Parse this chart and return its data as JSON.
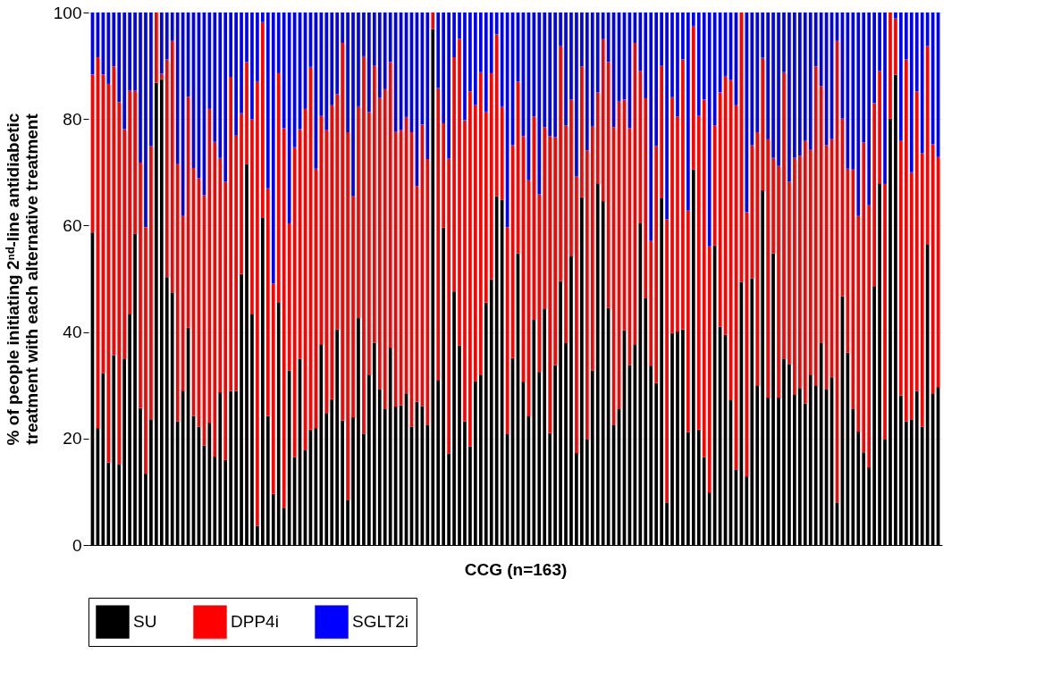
{
  "chart_data": {
    "type": "bar",
    "stacked": true,
    "xlabel": "CCG (n=163)",
    "ylabel": "% of people initiating 2ⁿᵈ-line antidiabetic\ntreatment with each alternative treatment",
    "categories": [
      null,
      null,
      null,
      null,
      null,
      null,
      null,
      null,
      null,
      null,
      null,
      null,
      null,
      null,
      null,
      null,
      null,
      null,
      null,
      null,
      null,
      null,
      null,
      null,
      null,
      null,
      null,
      null,
      null,
      null,
      null,
      null,
      null,
      null,
      null,
      null,
      null,
      null,
      null,
      null,
      null,
      null,
      null,
      null,
      null,
      null,
      null,
      null,
      null,
      null,
      null,
      null,
      null,
      null,
      null,
      null,
      null,
      null,
      null,
      null,
      null,
      null,
      null,
      null,
      null,
      null,
      null,
      null,
      null,
      null,
      null,
      null,
      null,
      null,
      null,
      null,
      null,
      null,
      null,
      null,
      null,
      null,
      null,
      null,
      null,
      null,
      null,
      null,
      null,
      null,
      null,
      null,
      null,
      null,
      null,
      null,
      null,
      null,
      null,
      null,
      null,
      null,
      null,
      null,
      null,
      null,
      null,
      null,
      null,
      null,
      null,
      null,
      null,
      null,
      null,
      null,
      null,
      null,
      null,
      null,
      null,
      null,
      null,
      null,
      null,
      null,
      null,
      null,
      null,
      null,
      null,
      null,
      null,
      null,
      null,
      null,
      null,
      null,
      null,
      null,
      null,
      null,
      null,
      null,
      null,
      null,
      null,
      null,
      null,
      null,
      null,
      null,
      null,
      null,
      null,
      null,
      null,
      null,
      null,
      null
    ],
    "series": [
      {
        "name": "SU",
        "color": "#000000",
        "values": [
          58.7,
          22.0,
          32.3,
          15.5,
          35.6,
          15.2,
          34.9,
          43.4,
          58.4,
          25.7,
          13.4,
          23.5,
          86.8,
          87.5,
          50.3,
          47.3,
          23.2,
          29.0,
          40.8,
          24.2,
          22.2,
          18.7,
          23.0,
          16.6,
          28.7,
          16.0,
          28.9,
          28.9,
          50.9,
          71.5,
          43.4,
          3.6,
          61.4,
          24.2,
          9.6,
          45.6,
          7.0,
          32.8,
          16.5,
          35.0,
          17.9,
          21.7,
          22.0,
          37.7,
          24.8,
          27.4,
          40.5,
          23.4,
          8.5,
          24.0,
          42.6,
          20.9,
          32.0,
          38.0,
          29.2,
          25.5,
          37.1,
          26.0,
          26.2,
          28.5,
          22.2,
          26.9,
          26.1,
          22.5,
          96.9,
          31.0,
          59.6,
          17.2,
          47.6,
          37.5,
          23.2,
          18.5,
          30.8,
          31.9,
          45.5,
          49.9,
          65.5,
          64.8,
          20.8,
          35.1,
          54.8,
          30.7,
          24.3,
          42.3,
          32.5,
          44.3,
          21.0,
          33.8,
          49.6,
          37.9,
          54.3,
          17.3,
          65.3,
          19.9,
          32.8,
          67.9,
          64.6,
          44.5,
          22.5,
          25.5,
          40.3,
          33.8,
          37.7,
          60.4,
          46.3,
          33.7,
          30.4,
          65.1,
          8.0,
          39.8,
          40.1,
          40.5,
          21.2,
          70.5,
          21.7,
          16.5,
          9.9,
          56.3,
          41.0,
          39.5,
          27.3,
          14.2,
          49.4,
          12.9,
          50.1,
          30.0,
          66.6,
          27.7,
          54.8,
          27.7,
          35.0,
          33.9,
          28.2,
          29.5,
          26.6,
          32.0,
          30.0,
          37.9,
          29.2,
          31.5,
          8.0,
          46.7,
          36.1,
          25.5,
          21.3,
          17.4,
          14.6,
          48.6,
          67.9,
          19.8,
          80.1,
          88.3,
          28.1,
          23.2,
          23.5,
          28.9,
          22.2,
          56.5,
          28.5,
          29.7
        ]
      },
      {
        "name": "DPP4i",
        "color": "#ff0000",
        "values": [
          29.7,
          69.6,
          56.1,
          71.1,
          54.3,
          68.0,
          43.2,
          41.9,
          26.9,
          46.1,
          46.3,
          51.4,
          13.2,
          1.0,
          40.9,
          47.5,
          48.3,
          32.8,
          43.4,
          46.6,
          46.7,
          47.0,
          58.9,
          59.1,
          44.0,
          52.2,
          59.0,
          48.1,
          30.2,
          19.2,
          36.6,
          83.5,
          36.8,
          42.8,
          39.5,
          43.0,
          71.3,
          27.6,
          58.2,
          43.1,
          64.0,
          68.1,
          48.7,
          43.0,
          53.2,
          55.3,
          44.2,
          70.9,
          69.0,
          41.6,
          39.8,
          70.9,
          49.3,
          52.1,
          54.8,
          60.1,
          53.6,
          51.7,
          51.8,
          51.9,
          55.3,
          40.5,
          52.9,
          50.0,
          3.1,
          54.8,
          19.6,
          55.4,
          44.0,
          57.6,
          56.6,
          66.7,
          51.8,
          56.9,
          35.9,
          38.7,
          30.4,
          17.6,
          38.9,
          40.0,
          32.2,
          46.1,
          44.2,
          38.2,
          33.4,
          34.2,
          55.8,
          42.8,
          44.2,
          40.9,
          29.4,
          51.9,
          24.6,
          54.2,
          45.9,
          17.1,
          30.4,
          46.2,
          56.0,
          57.9,
          43.4,
          44.5,
          56.6,
          28.6,
          37.6,
          23.5,
          44.5,
          25.0,
          53.2,
          44.3,
          40.4,
          50.7,
          41.6,
          27.0,
          58.9,
          67.2,
          46.2,
          22.5,
          44.0,
          48.6,
          60.0,
          68.5,
          50.6,
          49.6,
          25.0,
          47.5,
          24.9,
          48.5,
          17.9,
          43.6,
          53.8,
          34.3,
          44.5,
          43.6,
          49.3,
          42.2,
          59.9,
          48.3,
          45.9,
          44.7,
          86.8,
          33.4,
          34.6,
          45.0,
          40.6,
          58.2,
          49.2,
          34.4,
          21.1,
          48.0,
          19.9,
          10.6,
          47.9,
          68.0,
          46.5,
          56.3,
          51.4,
          37.2,
          46.8,
          43.3
        ]
      },
      {
        "name": "SGLT2i",
        "color": "#0000ff",
        "values": [
          11.6,
          8.4,
          11.6,
          13.4,
          10.1,
          16.8,
          21.9,
          14.7,
          14.7,
          28.2,
          40.3,
          25.1,
          0,
          11.5,
          8.8,
          5.2,
          28.5,
          38.2,
          15.8,
          29.2,
          31.1,
          34.3,
          18.1,
          24.3,
          27.3,
          31.8,
          12.1,
          23.0,
          18.9,
          9.3,
          20.0,
          12.9,
          1.8,
          33.0,
          50.9,
          11.4,
          21.7,
          39.6,
          25.3,
          21.9,
          18.1,
          10.2,
          29.3,
          19.3,
          22.0,
          17.3,
          15.3,
          5.7,
          22.5,
          34.4,
          17.6,
          8.2,
          18.7,
          9.9,
          16.0,
          14.4,
          9.3,
          22.3,
          22.0,
          19.6,
          22.5,
          32.6,
          21.0,
          27.5,
          0,
          14.2,
          20.8,
          27.4,
          8.4,
          4.9,
          20.2,
          14.8,
          17.4,
          11.2,
          18.6,
          11.4,
          4.1,
          17.6,
          40.3,
          24.9,
          13.0,
          23.2,
          31.5,
          19.5,
          34.1,
          21.5,
          23.2,
          23.4,
          6.2,
          21.2,
          16.3,
          30.8,
          10.1,
          25.9,
          21.3,
          15.0,
          5.0,
          9.3,
          21.5,
          16.6,
          16.3,
          21.7,
          5.7,
          11.0,
          16.1,
          42.8,
          25.1,
          9.9,
          38.8,
          15.9,
          19.5,
          8.8,
          37.2,
          2.5,
          19.4,
          16.3,
          43.9,
          21.2,
          15.0,
          11.9,
          12.7,
          17.3,
          0,
          37.5,
          24.9,
          22.5,
          8.5,
          23.8,
          27.3,
          28.7,
          11.2,
          31.8,
          27.3,
          26.9,
          24.1,
          25.8,
          10.1,
          13.8,
          24.9,
          23.8,
          5.2,
          19.9,
          29.3,
          29.5,
          38.1,
          24.4,
          36.2,
          17.0,
          11.0,
          32.2,
          0,
          1.1,
          24.0,
          8.8,
          30.0,
          14.8,
          26.4,
          6.3,
          24.7,
          27.0
        ]
      }
    ],
    "ylim": [
      0,
      100
    ],
    "yticks": [
      0,
      20,
      40,
      60,
      80,
      100
    ],
    "grid": "y",
    "legend": "bottom",
    "tick_labels": "y"
  }
}
